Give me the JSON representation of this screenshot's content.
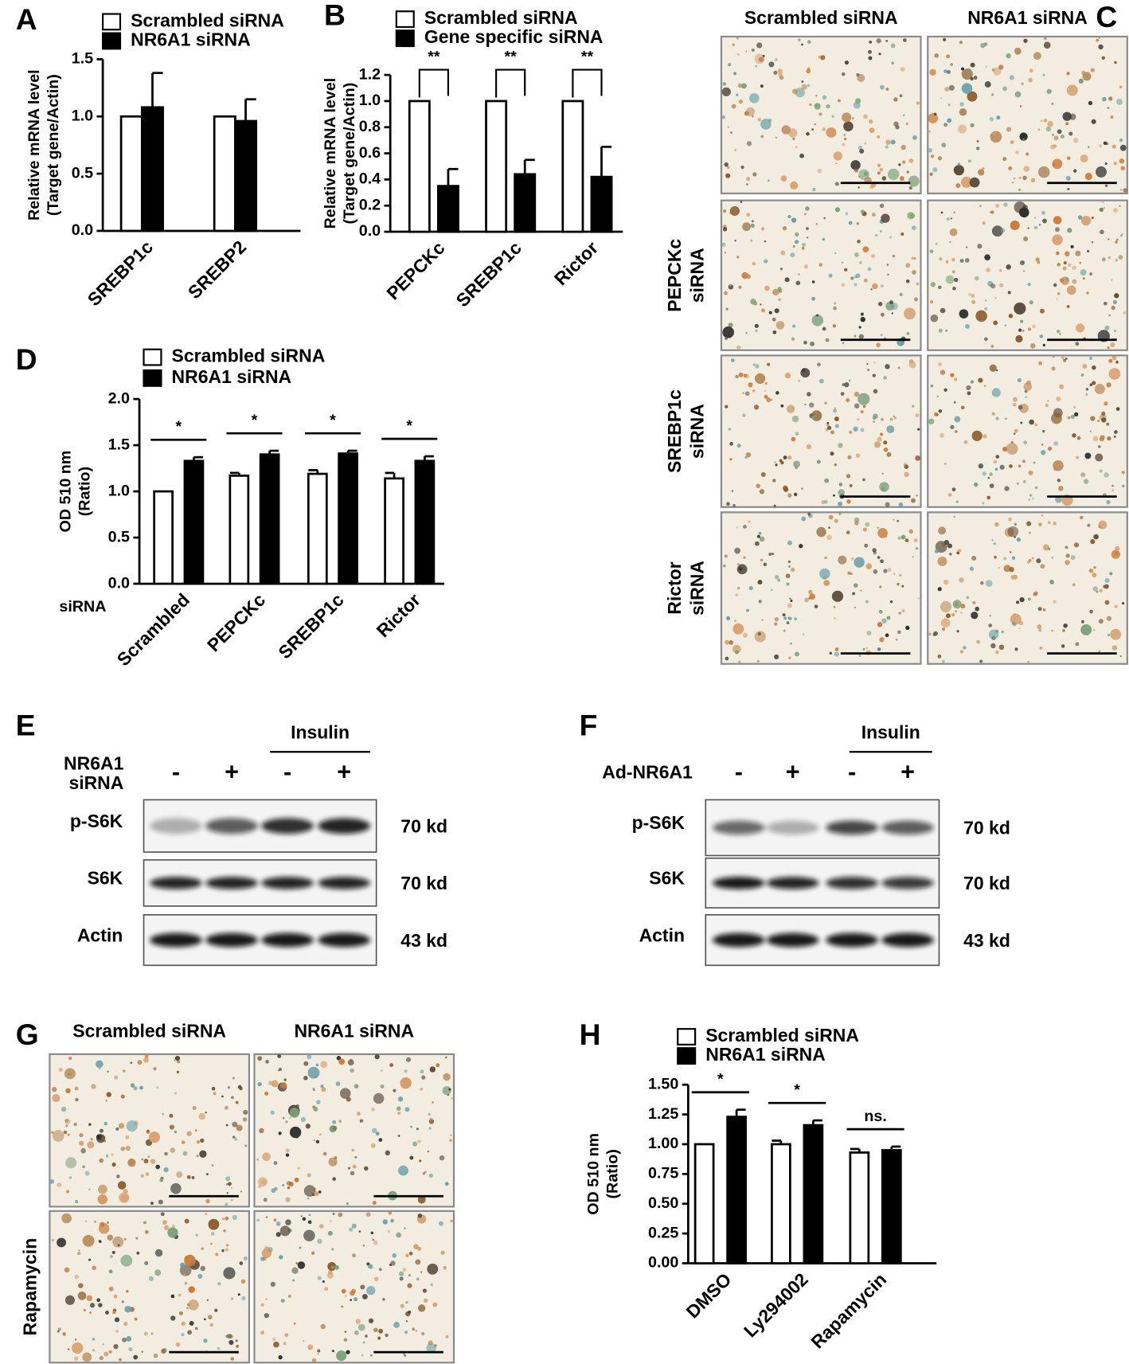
{
  "chart_data": [
    {
      "type": "bar",
      "panel_label": "A",
      "ylabel": [
        "Relative mRNA level",
        "(Target gene/Actin)"
      ],
      "categories": [
        "SREBP1c",
        "SREBP2"
      ],
      "series": [
        {
          "name": "Scrambled siRNA",
          "color": "#ffffff",
          "values": [
            1.0,
            1.0
          ]
        },
        {
          "name": "NR6A1 siRNA",
          "color": "#000000",
          "values": [
            1.08,
            0.96
          ],
          "errors": [
            0.3,
            0.19
          ]
        }
      ],
      "ylim": [
        0,
        1.5
      ],
      "yticks": [
        {
          "value": 0,
          "label": "0.0"
        },
        0.5,
        {
          "value": 1,
          "label": "1.0"
        },
        1.5
      ]
    },
    {
      "type": "bar",
      "panel_label": "B",
      "ylabel": [
        "Relative mRNA level",
        "(Target gene/Actin)"
      ],
      "categories": [
        "PEPCKc",
        "SREBP1c",
        "Rictor"
      ],
      "series": [
        {
          "name": "Scrambled siRNA",
          "color": "#ffffff",
          "values": [
            1.0,
            1.0,
            1.0
          ]
        },
        {
          "name": "Gene specific siRNA",
          "color": "#000000",
          "values": [
            0.35,
            0.44,
            0.42
          ],
          "errors": [
            0.13,
            0.11,
            0.23
          ]
        }
      ],
      "annotations": [
        "**",
        "**",
        "**"
      ],
      "ylim": [
        0,
        1.2
      ],
      "yticks": [
        {
          "value": 0,
          "label": "0.0"
        },
        0.2,
        0.4,
        0.6,
        0.8,
        {
          "value": 1,
          "label": "1.0"
        },
        1.2
      ]
    },
    {
      "type": "bar",
      "panel_label": "D",
      "ylabel": [
        "OD 510 nm",
        "(Ratio)"
      ],
      "xlabel": "siRNA",
      "categories": [
        "Scrambled",
        "PEPCKc",
        "SREBP1c",
        "Rictor"
      ],
      "series": [
        {
          "name": "Scrambled siRNA",
          "color": "#ffffff",
          "values": [
            1.0,
            1.17,
            1.19,
            1.14
          ],
          "errors": [
            null,
            0.03,
            0.04,
            0.06
          ]
        },
        {
          "name": "NR6A1 siRNA",
          "color": "#000000",
          "values": [
            1.33,
            1.4,
            1.41,
            1.33
          ],
          "errors": [
            0.04,
            0.04,
            0.03,
            0.05
          ]
        }
      ],
      "annotations": [
        "*",
        "*",
        "*",
        "*"
      ],
      "ylim": [
        0,
        2.0
      ],
      "yticks": [
        {
          "value": 0,
          "label": "0.0"
        },
        0.5,
        {
          "value": 1,
          "label": "1.0"
        },
        1.5,
        {
          "value": 2,
          "label": "2.0"
        }
      ]
    },
    {
      "type": "bar",
      "panel_label": "H",
      "ylabel": [
        "OD 510 nm",
        "(Ratio)"
      ],
      "categories": [
        "DMSO",
        "Ly294002",
        "Rapamycin"
      ],
      "series": [
        {
          "name": "Scrambled siRNA",
          "color": "#ffffff",
          "values": [
            1.0,
            1.0,
            0.93
          ],
          "errors": [
            null,
            0.03,
            0.03
          ]
        },
        {
          "name": "NR6A1 siRNA",
          "color": "#000000",
          "values": [
            1.23,
            1.16,
            0.95
          ],
          "errors": [
            0.06,
            0.04,
            0.03
          ]
        }
      ],
      "annotations": [
        "*",
        "*",
        "ns."
      ],
      "ylim": [
        0,
        1.5
      ],
      "yticks": [
        {
          "value": 0,
          "label": "0.00"
        },
        {
          "value": 0.25,
          "label": "0.25"
        },
        {
          "value": 0.5,
          "label": "0.50"
        },
        {
          "value": 0.75,
          "label": "0.75"
        },
        {
          "value": 1,
          "label": "1.00"
        },
        {
          "value": 1.25,
          "label": "1.25"
        },
        {
          "value": 1.5,
          "label": "1.50"
        }
      ]
    }
  ],
  "panel_c": {
    "panel_label": "C",
    "columns": [
      "Scrambled siRNA",
      "NR6A1 siRNA"
    ],
    "rows": [
      [
        "PEPCKc",
        "siRNA"
      ],
      [
        "SREBP1c",
        "siRNA"
      ],
      [
        "Rictor",
        "siRNA"
      ]
    ]
  },
  "panel_e": {
    "panel_label": "E",
    "group_label": "Insulin",
    "treatment_label": [
      "NR6A1",
      "siRNA"
    ],
    "lanes": [
      "-",
      "+",
      "-",
      "+"
    ],
    "blots": [
      {
        "name": "p-S6K",
        "size": "70 kd"
      },
      {
        "name": "S6K",
        "size": "70 kd"
      },
      {
        "name": "Actin",
        "size": "43 kd"
      }
    ]
  },
  "panel_f": {
    "panel_label": "F",
    "group_label": "Insulin",
    "treatment_label": [
      "Ad-NR6A1"
    ],
    "lanes": [
      "-",
      "+",
      "-",
      "+"
    ],
    "blots": [
      {
        "name": "p-S6K",
        "size": "70 kd"
      },
      {
        "name": "S6K",
        "size": "70 kd"
      },
      {
        "name": "Actin",
        "size": "43 kd"
      }
    ]
  },
  "panel_g": {
    "panel_label": "G",
    "columns": [
      "Scrambled siRNA",
      "NR6A1 siRNA"
    ],
    "rows": [
      "Rapamycin"
    ]
  }
}
